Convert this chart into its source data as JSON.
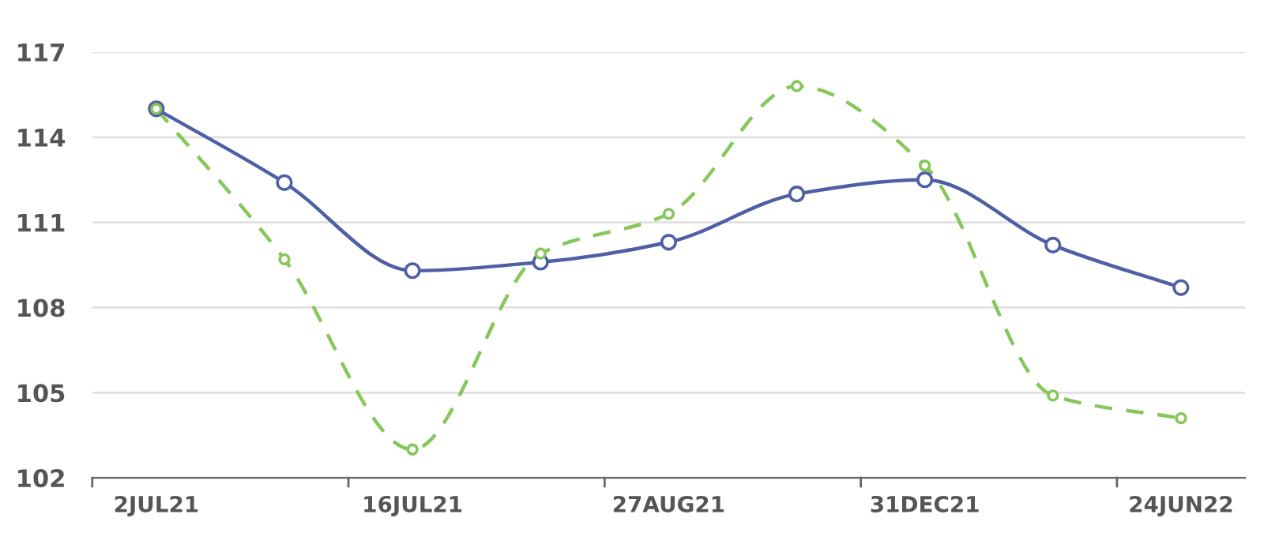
{
  "chart_data": {
    "type": "line",
    "categories": [
      "2JUL21",
      null,
      "16JUL21",
      null,
      "27AUG21",
      null,
      "31DEC21",
      null,
      "24JUN22"
    ],
    "series": [
      {
        "color": "#4e5fa6",
        "line_style": "solid",
        "values": [
          115.0,
          112.4,
          109.3,
          109.6,
          110.3,
          112.0,
          112.5,
          110.2,
          108.7
        ]
      },
      {
        "color": "#86c75a",
        "line_style": "dashed",
        "values": [
          115.0,
          109.7,
          103.0,
          109.9,
          111.3,
          115.8,
          113.0,
          104.9,
          104.1
        ]
      }
    ],
    "ylim": [
      102,
      117
    ],
    "yticks": [
      102,
      105,
      108,
      111,
      114,
      117
    ],
    "grid": "y",
    "marker": "circle"
  }
}
